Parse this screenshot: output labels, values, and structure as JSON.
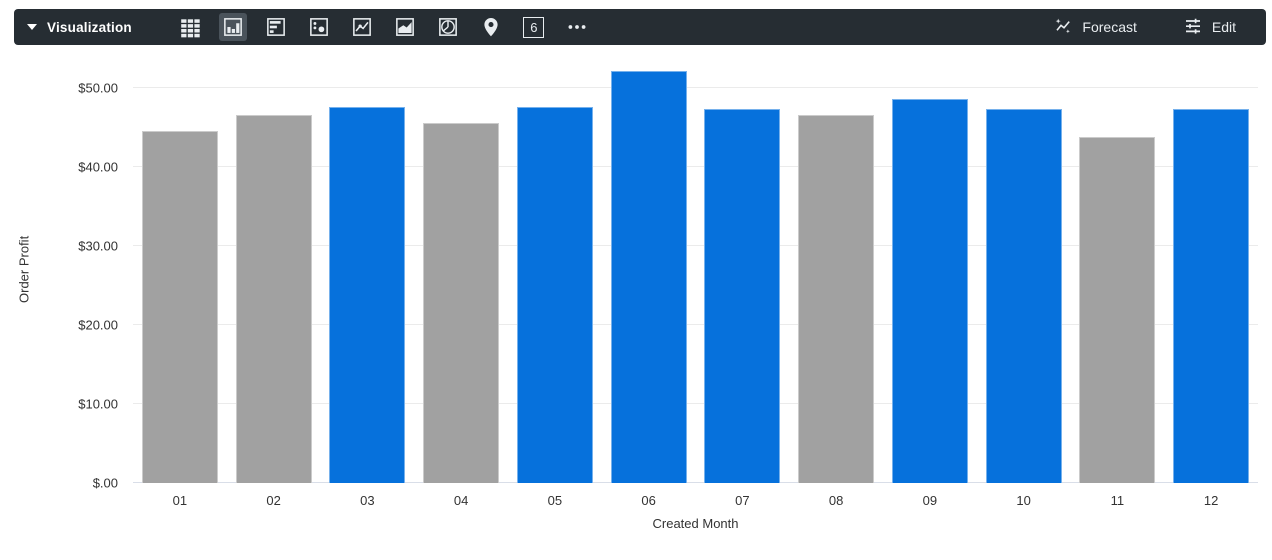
{
  "toolbar": {
    "title": "Visualization",
    "forecast_label": "Forecast",
    "edit_label": "Edit",
    "background": "#262d33",
    "selected_background": "#4a535b",
    "chart_types": [
      {
        "name": "table",
        "icon": "table-icon",
        "selected": false
      },
      {
        "name": "column",
        "icon": "column-chart-icon",
        "selected": true
      },
      {
        "name": "bar",
        "icon": "bar-chart-icon",
        "selected": false
      },
      {
        "name": "scatter",
        "icon": "scatter-icon",
        "selected": false
      },
      {
        "name": "line",
        "icon": "line-chart-icon",
        "selected": false
      },
      {
        "name": "area",
        "icon": "area-chart-icon",
        "selected": false
      },
      {
        "name": "pie",
        "icon": "pie-chart-icon",
        "selected": false
      },
      {
        "name": "map",
        "icon": "map-pin-icon",
        "selected": false
      },
      {
        "name": "single-value",
        "icon": "single-value-icon",
        "glyph": "6",
        "selected": false
      },
      {
        "name": "more",
        "icon": "ellipsis-icon",
        "selected": false
      }
    ]
  },
  "chart_data": {
    "type": "bar",
    "title": "",
    "xlabel": "Created Month",
    "ylabel": "Order Profit",
    "categories": [
      "01",
      "02",
      "03",
      "04",
      "05",
      "06",
      "07",
      "08",
      "09",
      "10",
      "11",
      "12"
    ],
    "values": [
      44.5,
      46.5,
      47.6,
      45.5,
      47.6,
      52.1,
      47.3,
      46.6,
      48.6,
      47.3,
      43.7,
      47.3
    ],
    "bar_palette": {
      "blue": "#0671dc",
      "gray": "#a1a1a1"
    },
    "bar_color_keys": [
      "gray",
      "gray",
      "blue",
      "gray",
      "blue",
      "blue",
      "blue",
      "gray",
      "blue",
      "blue",
      "gray",
      "blue"
    ],
    "y_ticks": [
      {
        "value": 0,
        "label": "$.00"
      },
      {
        "value": 10,
        "label": "$10.00"
      },
      {
        "value": 20,
        "label": "$20.00"
      },
      {
        "value": 30,
        "label": "$30.00"
      },
      {
        "value": 40,
        "label": "$40.00"
      },
      {
        "value": 50,
        "label": "$50.00"
      }
    ],
    "ylim": [
      0,
      54
    ],
    "grid": true,
    "legend": "none"
  }
}
